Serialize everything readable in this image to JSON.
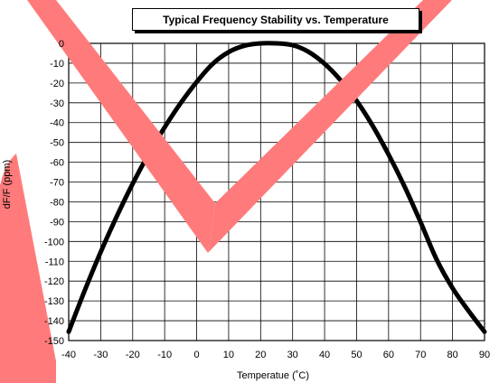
{
  "chart_data": {
    "type": "line",
    "title": "Typical Frequency Stability vs. Temperature",
    "xlabel": "Temperatue (˚C)",
    "ylabel": "dF/F (ppm)",
    "xlim": [
      -40,
      90
    ],
    "ylim": [
      -150,
      0
    ],
    "xticks": [
      -40,
      -30,
      -20,
      -10,
      0,
      10,
      20,
      30,
      40,
      50,
      60,
      70,
      80,
      90
    ],
    "yticks": [
      0,
      -10,
      -20,
      -30,
      -40,
      -50,
      -60,
      -70,
      -80,
      -90,
      -100,
      -110,
      -120,
      -130,
      -140,
      -150
    ],
    "grid": true,
    "series": [
      {
        "x": [
          -40,
          -35,
          -30,
          -25,
          -20,
          -15,
          -10,
          -5,
          0,
          5,
          10,
          15,
          20,
          25,
          30,
          35,
          40,
          45,
          50,
          55,
          60,
          65,
          70,
          75,
          80,
          85,
          90
        ],
        "y": [
          -145.6,
          -124.8,
          -105.3,
          -87.4,
          -70.8,
          -55.8,
          -42.3,
          -30.2,
          -19.5,
          -10.4,
          -4.4,
          -1.2,
          0,
          0,
          -0.9,
          -4.3,
          -10.3,
          -18.6,
          -29.0,
          -41.6,
          -56.1,
          -72.2,
          -90.2,
          -109.0,
          -123.5,
          -135.0,
          -145.6
        ],
        "color": "#000000"
      }
    ],
    "watermark": {
      "shape": "check-mark",
      "color": "#ff7b7b"
    }
  }
}
